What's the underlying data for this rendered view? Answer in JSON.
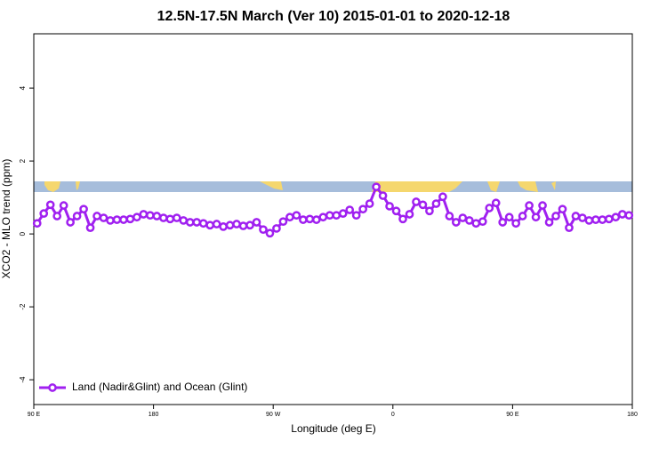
{
  "chart_data": {
    "type": "line",
    "title": "12.5N-17.5N March (Ver 10)   2015-01-01 to 2020-12-18",
    "xlabel": "Longitude (deg E)",
    "ylabel": "XCO2 - MLO trend (ppm)",
    "xlim": [
      90,
      540
    ],
    "ylim": [
      -4.68,
      5.49
    ],
    "xticks": [
      {
        "value": 90,
        "label": "90 E"
      },
      {
        "value": 180,
        "label": "180"
      },
      {
        "value": 270,
        "label": "90 W"
      },
      {
        "value": 360,
        "label": "0"
      },
      {
        "value": 450,
        "label": "90 E"
      },
      {
        "value": 540,
        "label": "180"
      }
    ],
    "yticks": [
      -4,
      -2,
      0,
      2,
      4
    ],
    "legend": "bottom-left",
    "x": [
      92.5,
      97.5,
      102.5,
      107.5,
      112.5,
      117.5,
      122.5,
      127.5,
      132.5,
      137.5,
      142.5,
      147.5,
      152.5,
      157.5,
      162.5,
      167.5,
      172.5,
      177.5,
      182.5,
      187.5,
      192.5,
      197.5,
      202.5,
      207.5,
      212.5,
      217.5,
      222.5,
      227.5,
      232.5,
      237.5,
      242.5,
      247.5,
      252.5,
      257.5,
      262.5,
      267.5,
      272.5,
      277.5,
      282.5,
      287.5,
      292.5,
      297.5,
      302.5,
      307.5,
      312.5,
      317.5,
      322.5,
      327.5,
      332.5,
      337.5,
      342.5,
      347.5,
      352.5,
      357.5,
      362.5,
      367.5,
      372.5,
      377.5,
      382.5,
      387.5,
      392.5,
      397.5,
      402.5,
      407.5,
      412.5,
      417.5,
      422.5,
      427.5,
      432.5,
      437.5,
      442.5,
      447.5,
      452.5,
      457.5,
      462.5,
      467.5,
      472.5,
      477.5,
      482.5,
      487.5,
      492.5,
      497.5,
      502.5,
      507.5,
      512.5,
      517.5,
      522.5,
      527.5,
      532.5,
      537.5
    ],
    "series": [
      {
        "name": "Land (Nadir&Glint) and Ocean (Glint)",
        "color": "#a020f0",
        "values": [
          0.29,
          0.56,
          0.8,
          0.49,
          0.78,
          0.32,
          0.49,
          0.68,
          0.17,
          0.49,
          0.44,
          0.37,
          0.39,
          0.39,
          0.41,
          0.46,
          0.54,
          0.51,
          0.49,
          0.44,
          0.41,
          0.44,
          0.37,
          0.32,
          0.32,
          0.29,
          0.24,
          0.27,
          0.2,
          0.24,
          0.27,
          0.22,
          0.24,
          0.32,
          0.12,
          0.02,
          0.15,
          0.34,
          0.46,
          0.51,
          0.39,
          0.41,
          0.39,
          0.46,
          0.51,
          0.51,
          0.56,
          0.66,
          0.51,
          0.68,
          0.83,
          1.29,
          1.05,
          0.76,
          0.63,
          0.41,
          0.54,
          0.88,
          0.8,
          0.63,
          0.83,
          1.02,
          0.49,
          0.32,
          0.44,
          0.37,
          0.29,
          0.34,
          0.71,
          0.85,
          0.32,
          0.46,
          0.29,
          0.49,
          0.78,
          0.46,
          0.78,
          0.32,
          0.49,
          0.68,
          0.17,
          0.49,
          0.44,
          0.37,
          0.39,
          0.39,
          0.41,
          0.46,
          0.54,
          0.51
        ]
      }
    ]
  }
}
